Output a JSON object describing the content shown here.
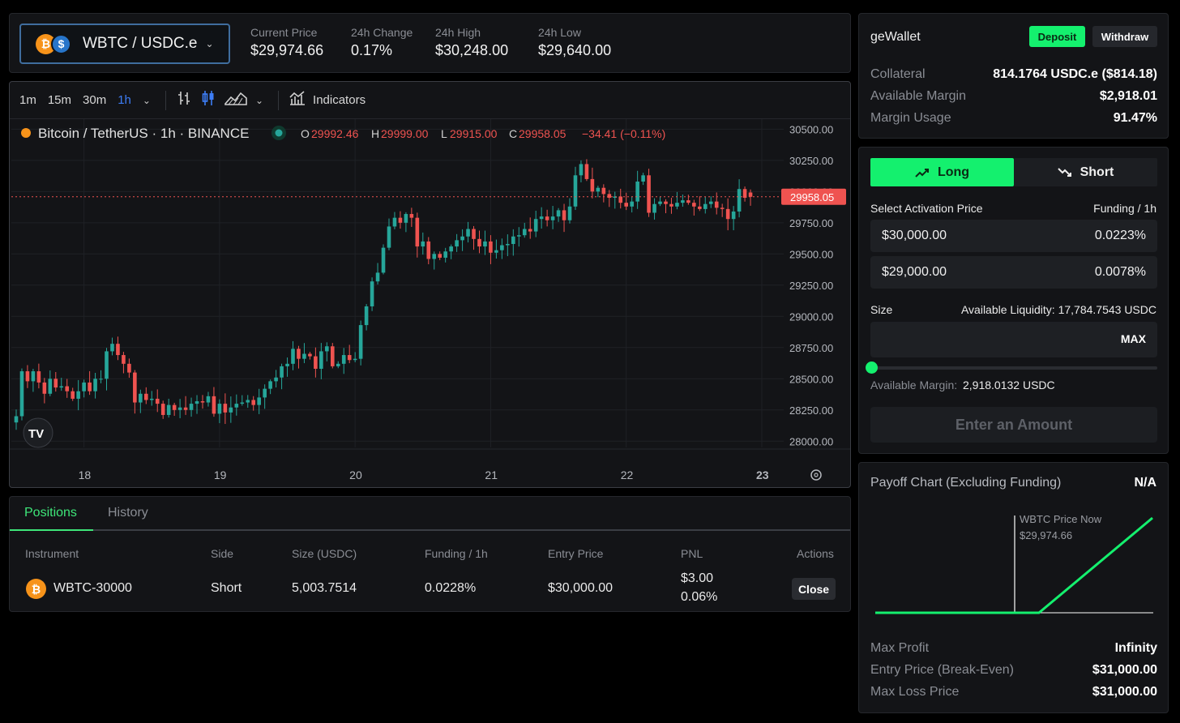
{
  "ticker": {
    "pair": "WBTC / USDC.e",
    "base_icon": "bitcoin-icon",
    "quote_icon": "usdc-icon",
    "stats": [
      {
        "label": "Current Price",
        "value": "$29,974.66"
      },
      {
        "label": "24h Change",
        "value": "0.17%"
      },
      {
        "label": "24h High",
        "value": "$30,248.00"
      },
      {
        "label": "24h Low",
        "value": "$29,640.00"
      }
    ]
  },
  "chart": {
    "timeframes": [
      "1m",
      "15m",
      "30m",
      "1h"
    ],
    "active_timeframe": "1h",
    "indicators_label": "Indicators",
    "symbol_title": "Bitcoin / TetherUS · 1h · BINANCE",
    "ohlc": {
      "o_label": "O",
      "o": "29992.46",
      "h_label": "H",
      "h": "29999.00",
      "l_label": "L",
      "l": "29915.00",
      "c_label": "C",
      "c": "29958.05",
      "change": "−34.41 (−0.11%)"
    },
    "last_price_tag": "29958.05",
    "brand_logo": "tradingview-logo",
    "settings_icon": "gear-icon"
  },
  "chart_data": {
    "type": "candlestick",
    "x_ticks": [
      "18",
      "19",
      "20",
      "21",
      "22",
      "23"
    ],
    "y_ticks": [
      "30500.00",
      "30250.00",
      "30000.00",
      "29750.00",
      "29500.00",
      "29250.00",
      "29000.00",
      "28750.00",
      "28500.00",
      "28250.00",
      "28000.00"
    ],
    "ylim": [
      27950,
      30580
    ],
    "x_tick_index": [
      12,
      36,
      60,
      84,
      108,
      132
    ],
    "grid": true,
    "up_color": "#26a69a",
    "down_color": "#ef5350",
    "closes": [
      28200,
      28560,
      28480,
      28560,
      28470,
      28380,
      28500,
      28430,
      28440,
      28400,
      28340,
      28400,
      28470,
      28400,
      28500,
      28500,
      28720,
      28780,
      28690,
      28620,
      28550,
      28310,
      28380,
      28330,
      28340,
      28300,
      28210,
      28290,
      28250,
      28270,
      28250,
      28300,
      28320,
      28310,
      28360,
      28220,
      28300,
      28230,
      28270,
      28300,
      28310,
      28330,
      28290,
      28350,
      28420,
      28480,
      28510,
      28600,
      28620,
      28740,
      28660,
      28700,
      28680,
      28580,
      28720,
      28760,
      28600,
      28620,
      28690,
      28650,
      28660,
      28930,
      29080,
      29280,
      29350,
      29550,
      29720,
      29790,
      29750,
      29820,
      29790,
      29560,
      29600,
      29460,
      29500,
      29470,
      29520,
      29560,
      29610,
      29640,
      29700,
      29620,
      29560,
      29600,
      29510,
      29530,
      29570,
      29580,
      29640,
      29650,
      29700,
      29680,
      29780,
      29800,
      29770,
      29800,
      29850,
      29770,
      29880,
      30130,
      30220,
      30100,
      30000,
      30030,
      29980,
      29950,
      29960,
      29910,
      29880,
      29920,
      30080,
      30130,
      29830,
      29900,
      29920,
      29900,
      29880,
      29910,
      29930,
      29910,
      29880,
      29860,
      29900,
      29920,
      29870,
      29860,
      29780,
      29840,
      30020,
      29950,
      29958.05
    ],
    "opens": [
      28150,
      28200,
      28560,
      28480,
      28560,
      28470,
      28380,
      28500,
      28430,
      28440,
      28400,
      28340,
      28400,
      28470,
      28400,
      28500,
      28500,
      28720,
      28780,
      28690,
      28620,
      28550,
      28310,
      28380,
      28330,
      28340,
      28300,
      28210,
      28290,
      28250,
      28270,
      28250,
      28300,
      28320,
      28310,
      28360,
      28220,
      28300,
      28230,
      28270,
      28300,
      28310,
      28330,
      28290,
      28350,
      28420,
      28480,
      28510,
      28600,
      28620,
      28740,
      28660,
      28700,
      28680,
      28580,
      28720,
      28760,
      28600,
      28620,
      28690,
      28650,
      28660,
      28930,
      29080,
      29280,
      29350,
      29550,
      29720,
      29790,
      29750,
      29820,
      29790,
      29560,
      29600,
      29460,
      29500,
      29470,
      29520,
      29560,
      29610,
      29640,
      29700,
      29620,
      29560,
      29600,
      29510,
      29530,
      29570,
      29580,
      29640,
      29650,
      29700,
      29680,
      29780,
      29800,
      29770,
      29800,
      29850,
      29770,
      29880,
      30130,
      30220,
      30100,
      30000,
      30030,
      29980,
      29950,
      29960,
      29910,
      29880,
      29920,
      30080,
      30130,
      29830,
      29900,
      29920,
      29900,
      29880,
      29910,
      29930,
      29910,
      29880,
      29860,
      29900,
      29920,
      29870,
      29860,
      29780,
      29840,
      30020,
      29992.46
    ],
    "highs_pad": 45,
    "lows_pad": 45
  },
  "positions": {
    "tabs": [
      "Positions",
      "History"
    ],
    "columns": [
      "Instrument",
      "Side",
      "Size (USDC)",
      "Funding / 1h",
      "Entry Price",
      "PNL",
      "Actions"
    ],
    "rows": [
      {
        "instrument": "WBTC-30000",
        "side": "Short",
        "size": "5,003.7514",
        "funding": "0.0228%",
        "entry": "$30,000.00",
        "pnl": "$3.00",
        "pnl_pct": "0.06%",
        "action": "Close"
      }
    ]
  },
  "wallet": {
    "title": "geWallet",
    "deposit": "Deposit",
    "withdraw": "Withdraw",
    "rows": [
      {
        "k": "Collateral",
        "v": "814.1764 USDC.e ($814.18)"
      },
      {
        "k": "Available Margin",
        "v": "$2,918.01"
      },
      {
        "k": "Margin Usage",
        "v": "91.47%"
      }
    ]
  },
  "trade": {
    "long": "Long",
    "short": "Short",
    "activation_label": "Select Activation Price",
    "funding_label": "Funding / 1h",
    "price_options": [
      {
        "price": "$30,000.00",
        "funding": "0.0223%"
      },
      {
        "price": "$29,000.00",
        "funding": "0.0078%"
      }
    ],
    "size_label": "Size",
    "liquidity_label": "Available Liquidity:",
    "liquidity_value": "17,784.7543 USDC",
    "size_placeholder": "",
    "max": "MAX",
    "slider_value": 0,
    "avail_margin_label": "Available Margin:",
    "avail_margin_value": "2,918.0132 USDC",
    "submit": "Enter an Amount"
  },
  "payoff": {
    "title": "Payoff Chart (Excluding Funding)",
    "value": "N/A",
    "now_label": "WBTC Price Now",
    "now_value": "$29,974.66",
    "rows": [
      {
        "k": "Max Profit",
        "v": "Infinity"
      },
      {
        "k": "Entry Price (Break-Even)",
        "v": "$31,000.00"
      },
      {
        "k": "Max Loss Price",
        "v": "$31,000.00"
      }
    ]
  }
}
